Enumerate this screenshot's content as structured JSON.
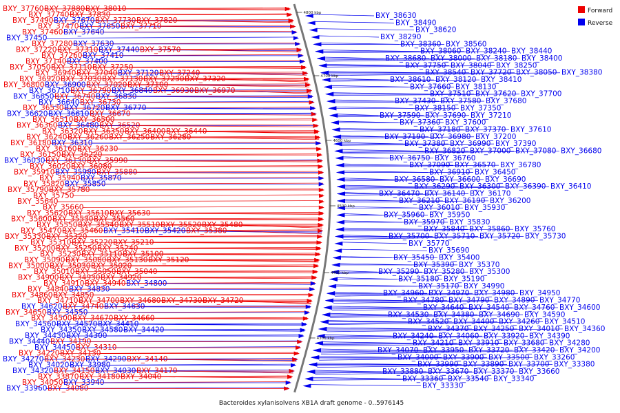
{
  "caption": "Bacteroides xylanisolvens XB1A draft genome - 0..5976145",
  "legend": [
    {
      "label": "Forward",
      "color": "#ee0000"
    },
    {
      "label": "Reverse",
      "color": "#0000ee"
    }
  ],
  "ticks": [
    "4800 kbp",
    "4700 kbp",
    "4600 kbp",
    "4500 kbp",
    "4400 kbp",
    "4300 kbp"
  ],
  "left_labels": [
    {
      "t": "BXY_37760",
      "s": "f"
    },
    {
      "t": "BXY_37880",
      "s": "f"
    },
    {
      "t": "BXY_38010",
      "s": "f"
    },
    {
      "t": "BXY_37740",
      "s": "f"
    },
    {
      "t": "BXY_37830",
      "s": "f"
    },
    {
      "t": "BXY_37490",
      "s": "f"
    },
    {
      "t": "BXY_37670",
      "s": "r"
    },
    {
      "t": "BXY_37730",
      "s": "f"
    },
    {
      "t": "BXY_37820",
      "s": "f"
    },
    {
      "t": "BXY_37470",
      "s": "f"
    },
    {
      "t": "BXY_37650",
      "s": "r"
    },
    {
      "t": "BXY_37710",
      "s": "f"
    },
    {
      "t": "BXY_37460",
      "s": "f"
    },
    {
      "t": "BXY_37640",
      "s": "r"
    },
    {
      "t": "BXY_37450",
      "s": "r"
    },
    {
      "t": "BXY_37280",
      "s": "f"
    },
    {
      "t": "BXY_37630",
      "s": "r"
    },
    {
      "t": "BXY_37220",
      "s": "f"
    },
    {
      "t": "BXY_37310",
      "s": "f"
    },
    {
      "t": "BXY_37440",
      "s": "r"
    },
    {
      "t": "BXY_37570",
      "s": "f"
    },
    {
      "t": "BXY_37260",
      "s": "f"
    },
    {
      "t": "BXY_37410",
      "s": "r"
    },
    {
      "t": "BXY_37140",
      "s": "f"
    },
    {
      "t": "BXY_37400",
      "s": "r"
    },
    {
      "t": "BXY_37050",
      "s": "f"
    },
    {
      "t": "BXY_37110",
      "s": "f"
    },
    {
      "t": "BXY_37250",
      "s": "f"
    },
    {
      "t": "BXY_36940",
      "s": "f"
    },
    {
      "t": "BXY_37040",
      "s": "f"
    },
    {
      "t": "BXY_37120",
      "s": "r"
    },
    {
      "t": "BXY_37240",
      "s": "f"
    },
    {
      "t": "BXY_36920",
      "s": "f"
    },
    {
      "t": "BXY_37030",
      "s": "f"
    },
    {
      "t": "BXY_37130",
      "s": "f"
    },
    {
      "t": "BXY_37230",
      "s": "f"
    },
    {
      "t": "BXY_37320",
      "s": "f"
    },
    {
      "t": "BXY_36800",
      "s": "f"
    },
    {
      "t": "BXY_36900",
      "s": "r"
    },
    {
      "t": "BXY_37020",
      "s": "f"
    },
    {
      "t": "BXY_37100",
      "s": "f"
    },
    {
      "t": "BXY_36710",
      "s": "r"
    },
    {
      "t": "BXY_36790",
      "s": "f"
    },
    {
      "t": "BXY_36840",
      "s": "r"
    },
    {
      "t": "BXY_36930",
      "s": "f"
    },
    {
      "t": "BXY_36970",
      "s": "f"
    },
    {
      "t": "BXY_36650",
      "s": "r"
    },
    {
      "t": "BXY_36740",
      "s": "f"
    },
    {
      "t": "BXY_36830",
      "s": "r"
    },
    {
      "t": "BXY_36640",
      "s": "r"
    },
    {
      "t": "BXY_36730",
      "s": "f"
    },
    {
      "t": "BXY_36530",
      "s": "f"
    },
    {
      "t": "BXY_36720",
      "s": "r"
    },
    {
      "t": "BXY_36770",
      "s": "r"
    },
    {
      "t": "BXY_36620",
      "s": "r"
    },
    {
      "t": "BXY_36610",
      "s": "r"
    },
    {
      "t": "BXY_36670",
      "s": "f"
    },
    {
      "t": "BXY_36510",
      "s": "f"
    },
    {
      "t": "BXY_36500",
      "s": "f"
    },
    {
      "t": "BXY_36360",
      "s": "f"
    },
    {
      "t": "BXY_36480",
      "s": "r"
    },
    {
      "t": "BXY_36520",
      "s": "f"
    },
    {
      "t": "BXY_36320",
      "s": "f"
    },
    {
      "t": "BXY_36350",
      "s": "f"
    },
    {
      "t": "BXY_36400",
      "s": "f"
    },
    {
      "t": "BXY_36440",
      "s": "f"
    },
    {
      "t": "BXY_36240",
      "s": "f"
    },
    {
      "t": "BXY_36260",
      "s": "f"
    },
    {
      "t": "BXY_36250",
      "s": "f"
    },
    {
      "t": "BXY_36280",
      "s": "f"
    },
    {
      "t": "BXY_36180",
      "s": "f"
    },
    {
      "t": "BXY_36310",
      "s": "r"
    },
    {
      "t": "BXY_36160",
      "s": "f"
    },
    {
      "t": "BXY_36230",
      "s": "f"
    },
    {
      "t": "BXY_36150",
      "s": "f"
    },
    {
      "t": "BXY_36220",
      "s": "f"
    },
    {
      "t": "BXY_36030",
      "s": "r"
    },
    {
      "t": "BXY_36130",
      "s": "f"
    },
    {
      "t": "BXY_35990",
      "s": "f"
    },
    {
      "t": "BXY_36020",
      "s": "f"
    },
    {
      "t": "BXY_36080",
      "s": "f"
    },
    {
      "t": "BXY_35910",
      "s": "f"
    },
    {
      "t": "BXY_35980",
      "s": "r"
    },
    {
      "t": "BXY_35880",
      "s": "f"
    },
    {
      "t": "BXY_35940",
      "s": "f"
    },
    {
      "t": "BXY_35870",
      "s": "r"
    },
    {
      "t": "BXY_35820",
      "s": "f"
    },
    {
      "t": "BXY_35850",
      "s": "r"
    },
    {
      "t": "BXY_35790",
      "s": "f"
    },
    {
      "t": "BXY_35780",
      "s": "f"
    },
    {
      "t": "BXY_35750",
      "s": "f"
    },
    {
      "t": "BXY_35640",
      "s": "f"
    },
    {
      "t": "BXY_35660",
      "s": "f"
    },
    {
      "t": "BXY_35620",
      "s": "f"
    },
    {
      "t": "BXY_35610",
      "s": "f"
    },
    {
      "t": "BXY_35630",
      "s": "f"
    },
    {
      "t": "BXY_35600",
      "s": "f"
    },
    {
      "t": "BXY_35530",
      "s": "f"
    },
    {
      "t": "BXY_35560",
      "s": "f"
    },
    {
      "t": "BXY_35550",
      "s": "f"
    },
    {
      "t": "BXY_35540",
      "s": "f"
    },
    {
      "t": "BXY_35510",
      "s": "f"
    },
    {
      "t": "BXY_35520",
      "s": "f"
    },
    {
      "t": "BXY_35480",
      "s": "f"
    },
    {
      "t": "BXY_35470",
      "s": "f"
    },
    {
      "t": "BXY_35460",
      "s": "f"
    },
    {
      "t": "BXY_35410",
      "s": "r"
    },
    {
      "t": "BXY_35420",
      "s": "r"
    },
    {
      "t": "BXY_35380",
      "s": "f"
    },
    {
      "t": "BXY_35330",
      "s": "f"
    },
    {
      "t": "BXY_35320",
      "s": "f"
    },
    {
      "t": "BXY_35310",
      "s": "f"
    },
    {
      "t": "BXY_35220",
      "s": "f"
    },
    {
      "t": "BXY_35210",
      "s": "f"
    },
    {
      "t": "BXY_35200",
      "s": "f"
    },
    {
      "t": "BXY_35250",
      "s": "f"
    },
    {
      "t": "BXY_35240",
      "s": "f"
    },
    {
      "t": "BXY_35230",
      "s": "f"
    },
    {
      "t": "BXY_35110",
      "s": "f"
    },
    {
      "t": "BXY_35100",
      "s": "f"
    },
    {
      "t": "BXY_35090",
      "s": "f"
    },
    {
      "t": "BXY_35080",
      "s": "f"
    },
    {
      "t": "BXY_35130",
      "s": "f"
    },
    {
      "t": "BXY_35120",
      "s": "f"
    },
    {
      "t": "BXY_35000",
      "s": "f"
    },
    {
      "t": "BXY_35030",
      "s": "f"
    },
    {
      "t": "BXY_35020",
      "s": "f"
    },
    {
      "t": "BXY_35010",
      "s": "f"
    },
    {
      "t": "BXY_35050",
      "s": "f"
    },
    {
      "t": "BXY_35040",
      "s": "f"
    },
    {
      "t": "BXY_34900",
      "s": "f"
    },
    {
      "t": "BXY_34930",
      "s": "f"
    },
    {
      "t": "BXY_34920",
      "s": "f"
    },
    {
      "t": "BXY_34910",
      "s": "f"
    },
    {
      "t": "BXY_34940",
      "s": "f"
    },
    {
      "t": "BXY_34800",
      "s": "r"
    },
    {
      "t": "BXY_34840",
      "s": "f"
    },
    {
      "t": "BXY_34830",
      "s": "r"
    },
    {
      "t": "BXY_34860",
      "s": "f"
    },
    {
      "t": "BXY_34850",
      "s": "f"
    },
    {
      "t": "BXY_34710",
      "s": "f"
    },
    {
      "t": "BXY_34700",
      "s": "f"
    },
    {
      "t": "BXY_34680",
      "s": "f"
    },
    {
      "t": "BXY_34730",
      "s": "f"
    },
    {
      "t": "BXY_34720",
      "s": "f"
    },
    {
      "t": "BXY_34620",
      "s": "r"
    },
    {
      "t": "BXY_34740",
      "s": "f"
    },
    {
      "t": "BXY_34630",
      "s": "r"
    },
    {
      "t": "BXY_34650",
      "s": "f"
    },
    {
      "t": "BXY_34550",
      "s": "r"
    },
    {
      "t": "BXY_34500",
      "s": "f"
    },
    {
      "t": "BXY_34670",
      "s": "f"
    },
    {
      "t": "BXY_34660",
      "s": "f"
    },
    {
      "t": "BXY_34560",
      "s": "r"
    },
    {
      "t": "BXY_34570",
      "s": "r"
    },
    {
      "t": "BXY_34410",
      "s": "r"
    },
    {
      "t": "BXY_34350",
      "s": "r"
    },
    {
      "t": "BXY_34580",
      "s": "r"
    },
    {
      "t": "BXY_34420",
      "s": "r"
    },
    {
      "t": "BXY_34430",
      "s": "r"
    },
    {
      "t": "BXY_34300",
      "s": "r"
    },
    {
      "t": "BXY_34440",
      "s": "r"
    },
    {
      "t": "BXY_34190",
      "s": "f"
    },
    {
      "t": "BXY_34450",
      "s": "r"
    },
    {
      "t": "BXY_34310",
      "s": "f"
    },
    {
      "t": "BXY_34220",
      "s": "f"
    },
    {
      "t": "BXY_34130",
      "s": "f"
    },
    {
      "t": "BXY_34270",
      "s": "r"
    },
    {
      "t": "BXY_34230",
      "s": "f"
    },
    {
      "t": "BXY_34290",
      "s": "r"
    },
    {
      "t": "BXY_34140",
      "s": "f"
    },
    {
      "t": "BXY_34020",
      "s": "r"
    },
    {
      "t": "BXY_33980",
      "s": "r"
    },
    {
      "t": "BXY_34320",
      "s": "r"
    },
    {
      "t": "BXY_34150",
      "s": "f"
    },
    {
      "t": "BXY_34030",
      "s": "r"
    },
    {
      "t": "BXY_34170",
      "s": "f"
    },
    {
      "t": "BXY_33870",
      "s": "f"
    },
    {
      "t": "BXY_34180",
      "s": "f"
    },
    {
      "t": "BXY_34040",
      "s": "f"
    },
    {
      "t": "BXY_34050",
      "s": "f"
    },
    {
      "t": "BXY_33940",
      "s": "r"
    },
    {
      "t": "BXY_33960",
      "s": "r"
    },
    {
      "t": "BXY_34080",
      "s": "f"
    }
  ],
  "right_labels": [
    "BXY_38630",
    "BXY_38490",
    "BXY_38620",
    "BXY_38290",
    "BXY_38360",
    "BXY_38560",
    "BXY_38060",
    "BXY_38240",
    "BXY_38440",
    "BXY_38680",
    "BXY_38000",
    "BXY_38180",
    "BXY_38400",
    "BXY_37750",
    "BXY_38040",
    "BXY_38250",
    "BXY_38540",
    "BXY_37720",
    "BXY_38050",
    "BXY_38380",
    "BXY_38610",
    "BXY_38120",
    "BXY_38410",
    "BXY_37660",
    "BXY_38130",
    "BXY_37510",
    "BXY_37620",
    "BXY_37700",
    "BXY_37430",
    "BXY_37580",
    "BXY_37680",
    "BXY_38150",
    "BXY_37350",
    "BXY_37590",
    "BXY_37690",
    "BXY_37210",
    "BXY_37360",
    "BXY_37600",
    "BXY_37180",
    "BXY_37370",
    "BXY_37610",
    "BXY_37190",
    "BXY_36980",
    "BXY_37200",
    "BXY_37380",
    "BXY_36990",
    "BXY_37390",
    "BXY_36820",
    "BXY_37000",
    "BXY_37080",
    "BXY_36680",
    "BXY_36750",
    "BXY_36760",
    "BXY_37090",
    "BXY_36570",
    "BXY_36780",
    "BXY_36910",
    "BXY_36450",
    "BXY_36580",
    "BXY_36600",
    "BXY_36690",
    "BXY_36290",
    "BXY_36300",
    "BXY_36390",
    "BXY_36410",
    "BXY_36470",
    "BXY_36140",
    "BXY_36170",
    "BXY_36210",
    "BXY_36190",
    "BXY_36200",
    "BXY_36010",
    "BXY_35930",
    "BXY_35960",
    "BXY_35950",
    "BXY_35970",
    "BXY_35830",
    "BXY_35840",
    "BXY_35860",
    "BXY_35760",
    "BXY_35700",
    "BXY_35710",
    "BXY_35720",
    "BXY_35730",
    "BXY_35770",
    "BXY_35690",
    "BXY_35450",
    "BXY_35400",
    "BXY_35390",
    "BXY_35370",
    "BXY_35290",
    "BXY_35280",
    "BXY_35300",
    "BXY_35180",
    "BXY_35190",
    "BXY_35170",
    "BXY_34990",
    "BXY_34960",
    "BXY_34970",
    "BXY_34980",
    "BXY_34950",
    "BXY_34780",
    "BXY_34790",
    "BXY_34890",
    "BXY_34770",
    "BXY_34640",
    "BXY_34540",
    "BXY_34760",
    "BXY_34600",
    "BXY_34530",
    "BXY_34380",
    "BXY_34690",
    "BXY_34590",
    "BXY_34520",
    "BXY_34400",
    "BXY_34260",
    "BXY_34510",
    "BXY_34370",
    "BXY_34250",
    "BXY_34010",
    "BXY_34360",
    "BXY_34240",
    "BXY_34060",
    "BXY_33920",
    "BXY_34390",
    "BXY_34210",
    "BXY_33910",
    "BXY_33680",
    "BXY_34280",
    "BXY_34070",
    "BXY_33950",
    "BXY_33720",
    "BXY_33420",
    "BXY_34200",
    "BXY_34000",
    "BXY_33900",
    "BXY_33500",
    "BXY_33260",
    "BXY_33990",
    "BXY_33890",
    "BXY_33700",
    "BXY_33380",
    "BXY_33880",
    "BXY_33670",
    "BXY_33370",
    "BXY_33660",
    "BXY_33360",
    "BXY_33540",
    "BXY_33340",
    "BXY_33330"
  ]
}
